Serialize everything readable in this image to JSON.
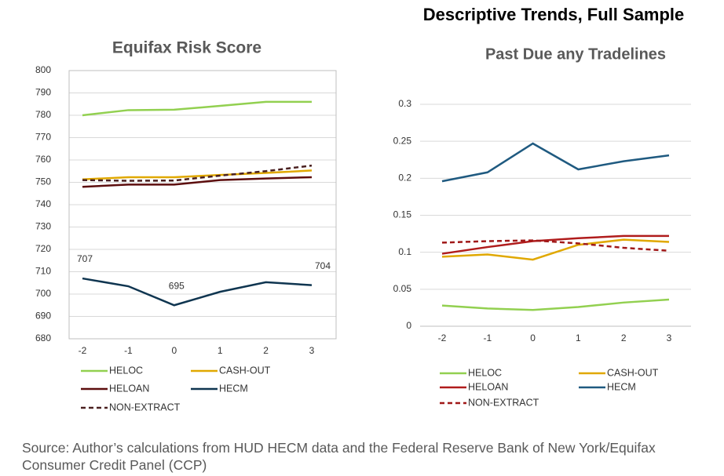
{
  "title": "Descriptive Trends, Full Sample",
  "source": "Source:  Author’s calculations from HUD HECM data and the Federal Reserve Bank of New York/Equifax Consumer Credit Panel (CCP)",
  "chart_data": [
    {
      "type": "line",
      "title": "Equifax Risk Score",
      "categories": [
        "-2",
        "-1",
        "0",
        "1",
        "2",
        "3"
      ],
      "ylim": [
        680,
        800
      ],
      "yticks": [
        680,
        690,
        700,
        710,
        720,
        730,
        740,
        750,
        760,
        770,
        780,
        790,
        800
      ],
      "grid": true,
      "series": [
        {
          "name": "HELOC",
          "color": "#92d050",
          "values": [
            780,
            782.3,
            782.5,
            784.2,
            786,
            786
          ]
        },
        {
          "name": "CASH-OUT",
          "color": "#e0a800",
          "values": [
            751.3,
            752.3,
            752.3,
            753.3,
            754.2,
            755.3
          ]
        },
        {
          "name": "HELOAN",
          "color": "#5c0d0d",
          "values": [
            748,
            749,
            749,
            751,
            751.7,
            752.3
          ]
        },
        {
          "name": "HECM",
          "color": "#0f3550",
          "values": [
            707,
            703.5,
            695,
            701,
            705.3,
            704
          ],
          "value_labels": [
            "707",
            null,
            "695",
            null,
            null,
            "704"
          ]
        },
        {
          "name": "NON-EXTRACT",
          "color": "#4a2020",
          "style": "dashed",
          "values": [
            751,
            750.7,
            750.8,
            753,
            755,
            757.5
          ]
        }
      ]
    },
    {
      "type": "line",
      "title": "Past Due any Tradelines",
      "categories": [
        "-2",
        "-1",
        "0",
        "1",
        "2",
        "3"
      ],
      "ylim": [
        0,
        0.3
      ],
      "yticks": [
        0,
        0.05,
        0.1,
        0.15,
        0.2,
        0.25,
        0.3
      ],
      "grid": true,
      "series": [
        {
          "name": "HELOC",
          "color": "#92d050",
          "values": [
            0.028,
            0.024,
            0.022,
            0.026,
            0.032,
            0.036
          ]
        },
        {
          "name": "CASH-OUT",
          "color": "#e0a800",
          "values": [
            0.094,
            0.097,
            0.09,
            0.11,
            0.117,
            0.114
          ]
        },
        {
          "name": "HELOAN",
          "color": "#b01c1c",
          "values": [
            0.098,
            0.107,
            0.115,
            0.119,
            0.122,
            0.122
          ]
        },
        {
          "name": "HECM",
          "color": "#1f5a80",
          "values": [
            0.196,
            0.208,
            0.247,
            0.212,
            0.223,
            0.231
          ]
        },
        {
          "name": "NON-EXTRACT",
          "color": "#a01818",
          "style": "dashed",
          "values": [
            0.113,
            0.115,
            0.116,
            0.112,
            0.106,
            0.102
          ]
        }
      ]
    }
  ]
}
